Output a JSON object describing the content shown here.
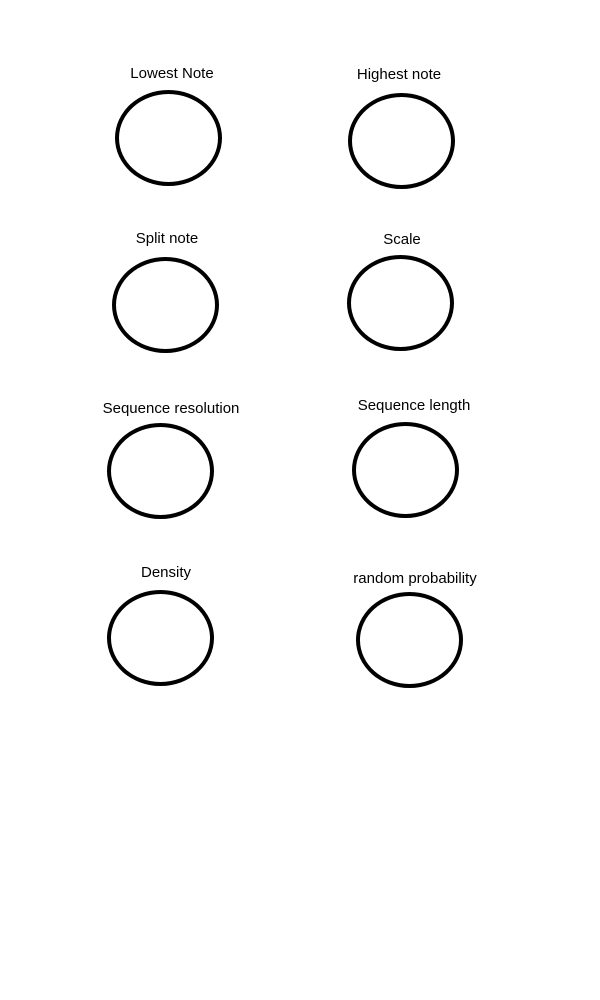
{
  "knobs": {
    "lowest_note": {
      "label": "Lowest Note"
    },
    "highest_note": {
      "label": "Highest note"
    },
    "split_note": {
      "label": "Split note"
    },
    "scale": {
      "label": "Scale"
    },
    "sequence_resolution": {
      "label": "Sequence resolution"
    },
    "sequence_length": {
      "label": "Sequence length"
    },
    "density": {
      "label": "Density"
    },
    "random_probability": {
      "label": "random probability"
    }
  },
  "colors": {
    "background": "#ffffff",
    "stroke": "#000000",
    "text": "#000000"
  }
}
